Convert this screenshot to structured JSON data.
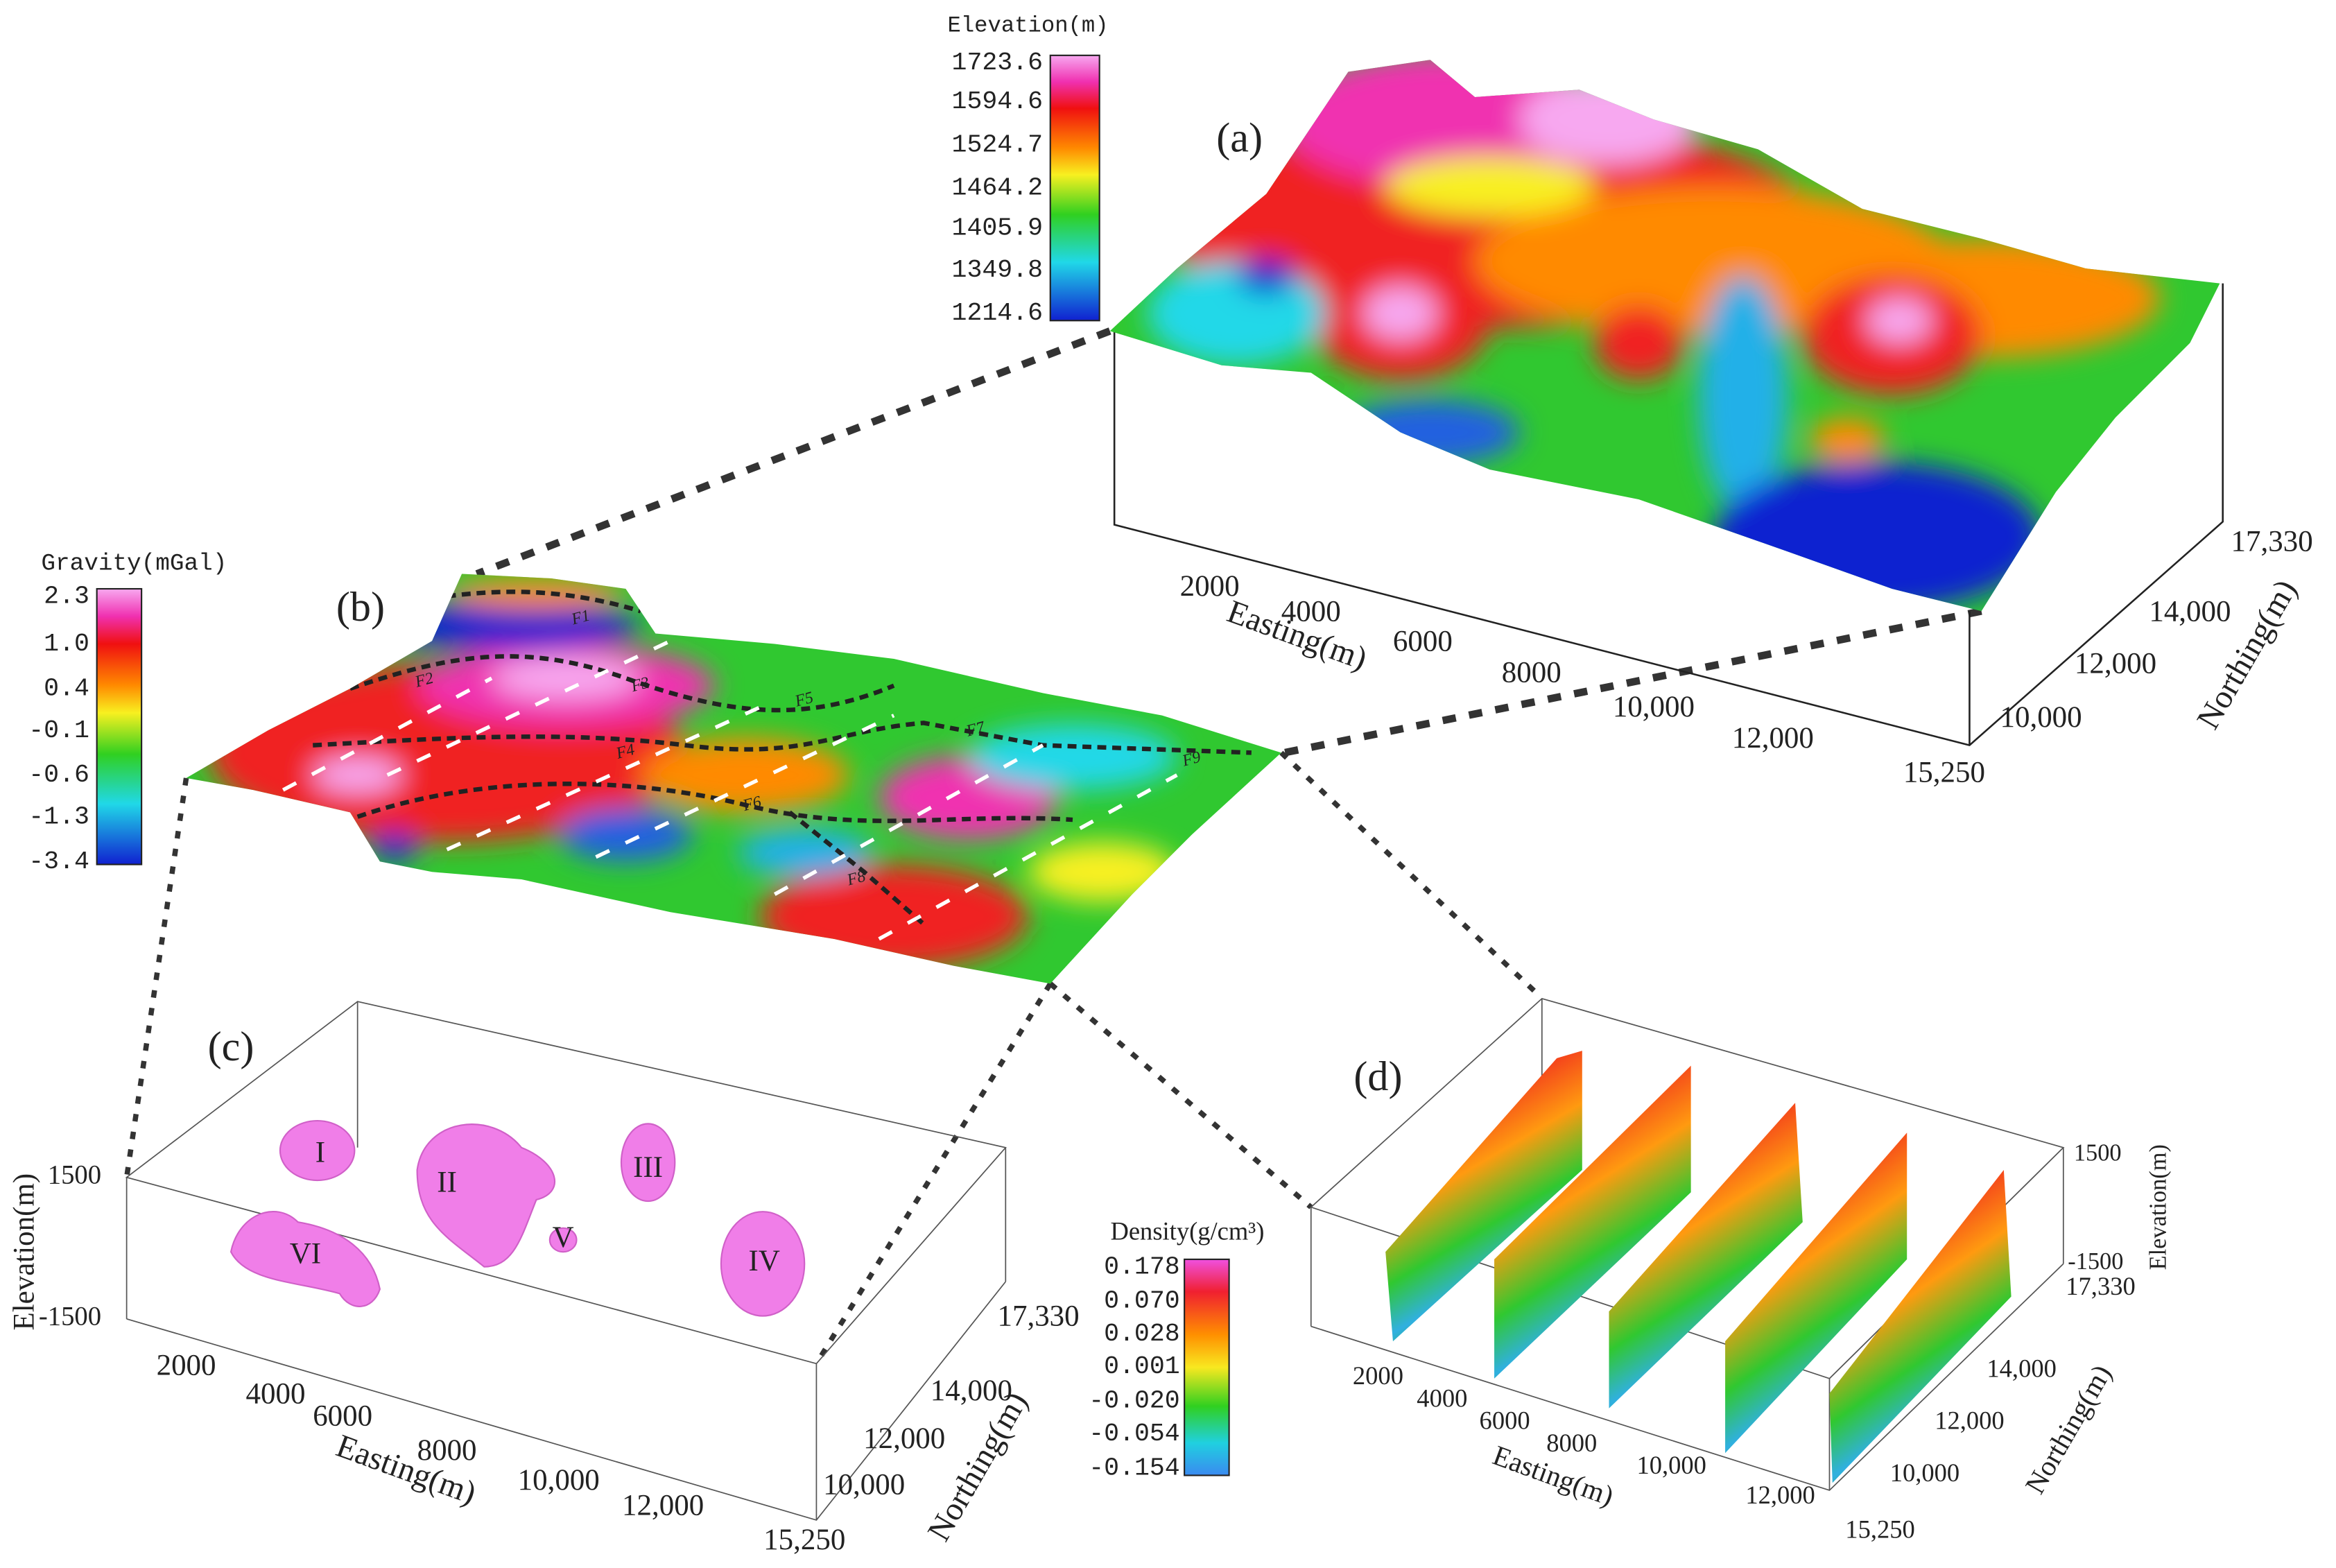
{
  "panel_a": {
    "label": "(a)",
    "colorbar": {
      "title": "Elevation(m)",
      "ticks": [
        "1723.6",
        "1594.6",
        "1524.7",
        "1464.2",
        "1405.9",
        "1349.8",
        "1214.6"
      ]
    },
    "easting": {
      "title": "Easting(m)",
      "ticks": [
        "2000",
        "4000",
        "6000",
        "8000",
        "10,000",
        "12,000"
      ]
    },
    "northing": {
      "title": "Northing(m)",
      "ticks": [
        "17,330",
        "14,000",
        "12,000",
        "10,000",
        "15,250"
      ]
    }
  },
  "panel_b": {
    "label": "(b)",
    "colorbar": {
      "title": "Gravity(mGal)",
      "ticks": [
        "2.3",
        "1.0",
        "0.4",
        "-0.1",
        "-0.6",
        "-1.3",
        "-3.4"
      ]
    },
    "faults": [
      "F1",
      "F2",
      "F3",
      "F4",
      "F5",
      "F6",
      "F7",
      "F8",
      "F9"
    ]
  },
  "panel_c": {
    "label": "(c)",
    "elevation": {
      "title": "Elevation(m)",
      "ticks": [
        "1500",
        "-1500"
      ]
    },
    "easting": {
      "title": "Easting(m)",
      "ticks": [
        "2000",
        "4000",
        "6000",
        "8000",
        "10,000",
        "12,000"
      ]
    },
    "northing": {
      "title": "Northing(m)",
      "ticks": [
        "17,330",
        "14,000",
        "12,000",
        "10,000",
        "15,250"
      ]
    },
    "bodies": [
      "I",
      "II",
      "III",
      "IV",
      "V",
      "VI"
    ],
    "colorbar": {
      "title": "Density(g/cm³)",
      "ticks": [
        "0.178",
        "0.070",
        "0.028",
        "0.001",
        "-0.020",
        "-0.054",
        "-0.154"
      ]
    }
  },
  "panel_d": {
    "label": "(d)",
    "elevation": {
      "title": "Elevation(m)",
      "ticks": [
        "1500",
        "-1500"
      ]
    },
    "easting": {
      "title": "Easting(m)",
      "ticks": [
        "2000",
        "4000",
        "6000",
        "8000",
        "10,000",
        "12,000"
      ]
    },
    "northing": {
      "title": "Northing(m)",
      "ticks": [
        "17,330",
        "14,000",
        "12,000",
        "10,000",
        "15,250"
      ]
    }
  }
}
